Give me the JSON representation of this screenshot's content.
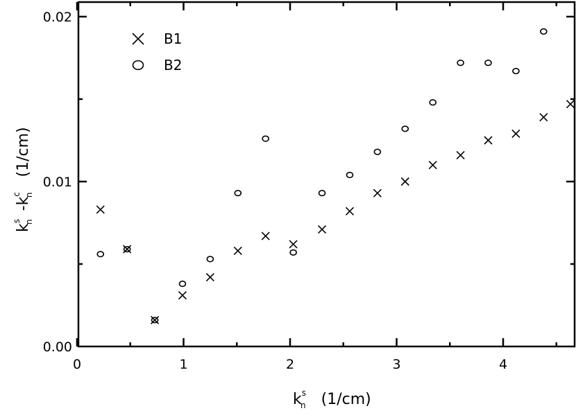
{
  "chart_data": {
    "type": "scatter",
    "xlim": [
      0,
      4.65
    ],
    "ylim": [
      0,
      0.02
    ],
    "x_ticks": [
      {
        "value": 0,
        "label": "0"
      },
      {
        "value": 1,
        "label": "1"
      },
      {
        "value": 2,
        "label": "2"
      },
      {
        "value": 3,
        "label": "3"
      },
      {
        "value": 4,
        "label": "4"
      }
    ],
    "y_ticks": [
      {
        "value": 0,
        "label": "0.00"
      },
      {
        "value": 0.01,
        "label": "0.01"
      },
      {
        "value": 0.02,
        "label": "0.02"
      }
    ],
    "x_minor_ticks": [
      0.5,
      1.5,
      2.5,
      3.5,
      4.5
    ],
    "y_minor_ticks": [
      0.005,
      0.015
    ],
    "xlabel": {
      "base": "k",
      "sup": "s",
      "sub": "n",
      "unit": "(1/cm)"
    },
    "ylabel": {
      "base1": "k",
      "sup1": "s",
      "sub1": "n",
      "base2": "-k",
      "sup2": "c",
      "sub2": "n",
      "unit": "(1/cm)"
    },
    "grid": false,
    "legend_position": "top-left",
    "series": [
      {
        "name": "B1",
        "marker": "cross",
        "points": [
          [
            0.22,
            0.0083
          ],
          [
            0.47,
            0.0059
          ],
          [
            0.73,
            0.0016
          ],
          [
            0.99,
            0.0031
          ],
          [
            1.25,
            0.0042
          ],
          [
            1.51,
            0.0058
          ],
          [
            1.77,
            0.0067
          ],
          [
            2.03,
            0.0062
          ],
          [
            2.3,
            0.0071
          ],
          [
            2.56,
            0.0082
          ],
          [
            2.82,
            0.0093
          ],
          [
            3.08,
            0.01
          ],
          [
            3.34,
            0.011
          ],
          [
            3.6,
            0.0116
          ],
          [
            3.86,
            0.0125
          ],
          [
            4.12,
            0.0129
          ],
          [
            4.38,
            0.0139
          ],
          [
            4.64,
            0.0147
          ]
        ]
      },
      {
        "name": "B2",
        "marker": "circle",
        "points": [
          [
            0.22,
            0.0056
          ],
          [
            0.47,
            0.0059
          ],
          [
            0.73,
            0.0016
          ],
          [
            0.99,
            0.0038
          ],
          [
            1.25,
            0.0053
          ],
          [
            1.51,
            0.0093
          ],
          [
            1.77,
            0.0126
          ],
          [
            2.03,
            0.0057
          ],
          [
            2.3,
            0.0093
          ],
          [
            2.56,
            0.0104
          ],
          [
            2.82,
            0.0118
          ],
          [
            3.08,
            0.0132
          ],
          [
            3.34,
            0.0148
          ],
          [
            3.6,
            0.0172
          ],
          [
            3.86,
            0.0172
          ],
          [
            4.12,
            0.0167
          ],
          [
            4.38,
            0.0191
          ]
        ]
      }
    ]
  }
}
